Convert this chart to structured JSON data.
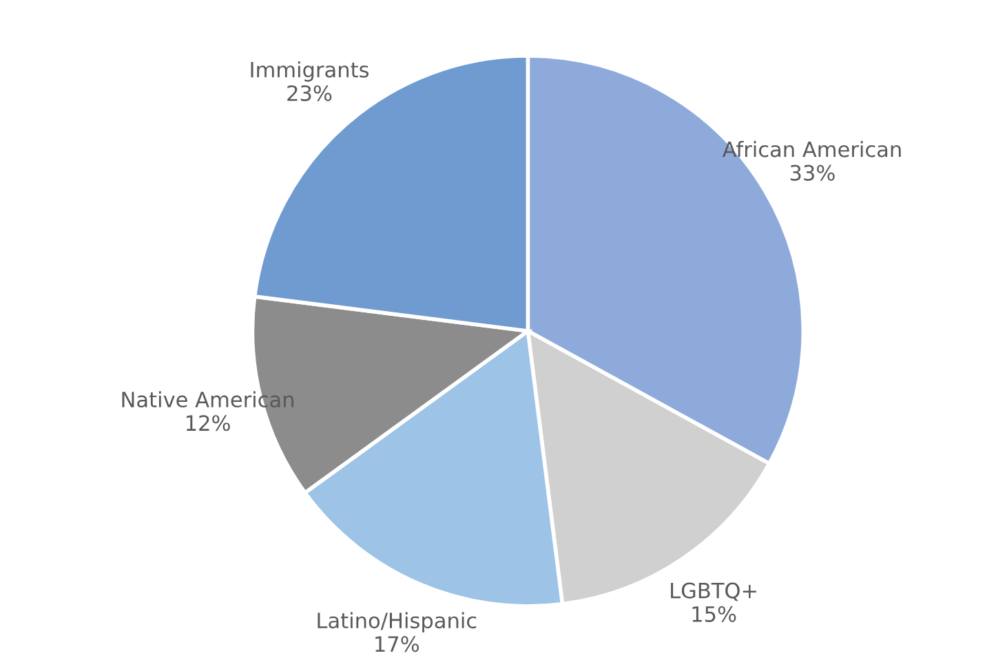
{
  "chart_data": {
    "type": "pie",
    "categories": [
      "African American",
      "LGBTQ+",
      "Latino/Hispanic",
      "Native American",
      "Immigrants"
    ],
    "values": [
      33,
      15,
      17,
      12,
      23
    ],
    "colors": [
      "#8eaadb",
      "#d0d0d0",
      "#9dc3e6",
      "#8c8c8c",
      "#6f9bd0"
    ],
    "value_labels": [
      "33%",
      "15%",
      "17%",
      "12%",
      "23%"
    ]
  }
}
